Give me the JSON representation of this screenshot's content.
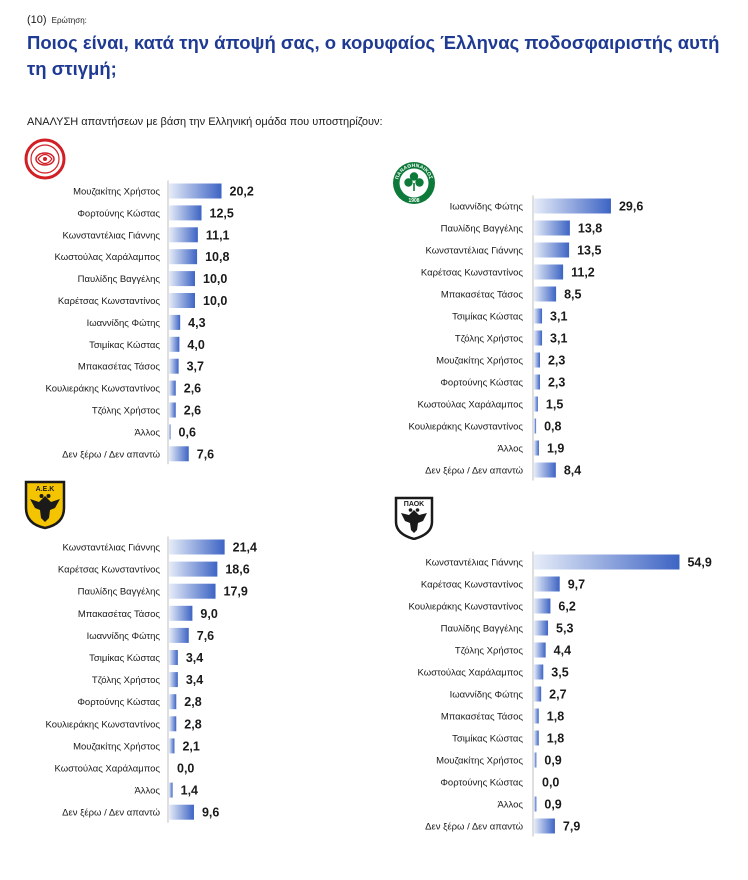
{
  "question": {
    "number": "(10)",
    "label": "Ερώτηση:"
  },
  "title": "Ποιος είναι, κατά την άποψή σας, ο κορυφαίος Έλληνας ποδοσφαιριστής αυτή τη στιγμή;",
  "subtitle": "ΑΝΑΛΥΣΗ απαντήσεων με βάση την Ελληνική ομάδα που υποστηρίζουν:",
  "logos": {
    "olympiacos": "Olympiacos crest",
    "panathinaikos": {
      "top_text": "ΠΑΝΑΘΗΝΑΙΚΟΣ",
      "year": "1908"
    },
    "aek": {
      "text": "Α.Ε.Κ"
    },
    "paok": {
      "text": "ΠΑΟΚ"
    }
  },
  "colors": {
    "title": "#1f3a93",
    "bar_dark": "#3d64c4",
    "bar_light": "#e6ecf8"
  },
  "chart_data": [
    {
      "type": "bar",
      "orientation": "horizontal",
      "team": "Olympiacos",
      "categories": [
        "Μουζακίτης Χρήστος",
        "Φορτούνης Κώστας",
        "Κωνσταντέλιας Γιάννης",
        "Κωστούλας Χαράλαμπος",
        "Παυλίδης Βαγγέλης",
        "Καρέτσας Κωνσταντίνος",
        "Ιωαννίδης Φώτης",
        "Τσιμίκας Κώστας",
        "Μπακασέτας Τάσος",
        "Κουλιεράκης Κωνσταντίνος",
        "Τζόλης Χρήστος",
        "Άλλος",
        "Δεν ξέρω / Δεν απαντώ"
      ],
      "values": [
        20.2,
        12.5,
        11.1,
        10.8,
        10.0,
        10.0,
        4.3,
        4.0,
        3.7,
        2.6,
        2.6,
        0.6,
        7.6
      ],
      "labels": [
        "20,2",
        "12,5",
        "11,1",
        "10,8",
        "10,0",
        "10,0",
        "4,3",
        "4,0",
        "3,7",
        "2,6",
        "2,6",
        "0,6",
        "7,6"
      ],
      "xlim": [
        0,
        60
      ]
    },
    {
      "type": "bar",
      "orientation": "horizontal",
      "team": "Panathinaikos",
      "categories": [
        "Ιωαννίδης Φώτης",
        "Παυλίδης Βαγγέλης",
        "Κωνσταντέλιας Γιάννης",
        "Καρέτσας Κωνσταντίνος",
        "Μπακασέτας Τάσος",
        "Τσιμίκας Κώστας",
        "Τζόλης Χρήστος",
        "Μουζακίτης Χρήστος",
        "Φορτούνης Κώστας",
        "Κωστούλας Χαράλαμπος",
        "Κουλιεράκης Κωνσταντίνος",
        "Άλλος",
        "Δεν ξέρω / Δεν απαντώ"
      ],
      "values": [
        29.6,
        13.8,
        13.5,
        11.2,
        8.5,
        3.1,
        3.1,
        2.3,
        2.3,
        1.5,
        0.8,
        1.9,
        8.4
      ],
      "labels": [
        "29,6",
        "13,8",
        "13,5",
        "11,2",
        "8,5",
        "3,1",
        "3,1",
        "2,3",
        "2,3",
        "1,5",
        "0,8",
        "1,9",
        "8,4"
      ],
      "xlim": [
        0,
        60
      ]
    },
    {
      "type": "bar",
      "orientation": "horizontal",
      "team": "AEK",
      "categories": [
        "Κωνσταντέλιας Γιάννης",
        "Καρέτσας Κωνσταντίνος",
        "Παυλίδης Βαγγέλης",
        "Μπακασέτας Τάσος",
        "Ιωαννίδης Φώτης",
        "Τσιμίκας Κώστας",
        "Τζόλης Χρήστος",
        "Φορτούνης Κώστας",
        "Κουλιεράκης Κωνσταντίνος",
        "Μουζακίτης Χρήστος",
        "Κωστούλας Χαράλαμπος",
        "Άλλος",
        "Δεν ξέρω / Δεν απαντώ"
      ],
      "values": [
        21.4,
        18.6,
        17.9,
        9.0,
        7.6,
        3.4,
        3.4,
        2.8,
        2.8,
        2.1,
        0.0,
        1.4,
        9.6
      ],
      "labels": [
        "21,4",
        "18,6",
        "17,9",
        "9,0",
        "7,6",
        "3,4",
        "3,4",
        "2,8",
        "2,8",
        "2,1",
        "0,0",
        "1,4",
        "9,6"
      ],
      "xlim": [
        0,
        60
      ]
    },
    {
      "type": "bar",
      "orientation": "horizontal",
      "team": "PAOK",
      "categories": [
        "Κωνσταντέλιας Γιάννης",
        "Καρέτσας Κωνσταντίνος",
        "Κουλιεράκης Κωνσταντίνος",
        "Παυλίδης Βαγγέλης",
        "Τζόλης Χρήστος",
        "Κωστούλας Χαράλαμπος",
        "Ιωαννίδης Φώτης",
        "Μπακασέτας Τάσος",
        "Τσιμίκας Κώστας",
        "Μουζακίτης Χρήστος",
        "Φορτούνης Κώστας",
        "Άλλος",
        "Δεν ξέρω / Δεν απαντώ"
      ],
      "values": [
        54.9,
        9.7,
        6.2,
        5.3,
        4.4,
        3.5,
        2.7,
        1.8,
        1.8,
        0.9,
        0.0,
        0.9,
        7.9
      ],
      "labels": [
        "54,9",
        "9,7",
        "6,2",
        "5,3",
        "4,4",
        "3,5",
        "2,7",
        "1,8",
        "1,8",
        "0,9",
        "0,0",
        "0,9",
        "7,9"
      ],
      "xlim": [
        0,
        60
      ]
    }
  ]
}
